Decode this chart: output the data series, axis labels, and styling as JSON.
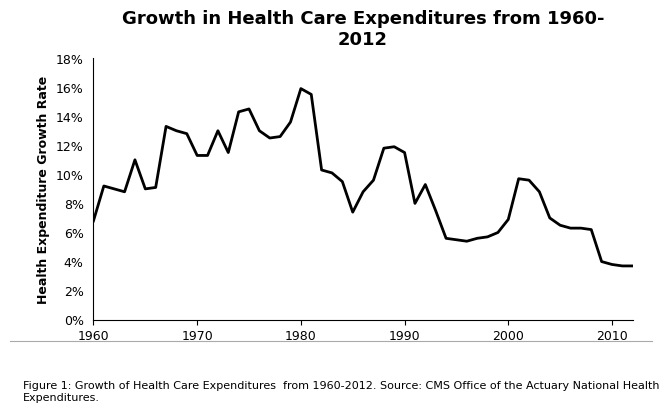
{
  "title": "Growth in Health Care Expenditures from 1960-\n2012",
  "ylabel": "Health Expenditure Growth Rate",
  "xlabel": "",
  "caption": "Figure 1: Growth of Health Care Expenditures  from 1960-2012. Source: CMS Office of the Actuary National Health\nExpenditures.",
  "line_color": "#000000",
  "line_width": 2.0,
  "background_color": "#ffffff",
  "xlim": [
    1960,
    2012
  ],
  "ylim": [
    0,
    0.18
  ],
  "yticks": [
    0,
    0.02,
    0.04,
    0.06,
    0.08,
    0.1,
    0.12,
    0.14,
    0.16,
    0.18
  ],
  "xticks": [
    1960,
    1970,
    1980,
    1990,
    2000,
    2010
  ],
  "years": [
    1960,
    1961,
    1962,
    1963,
    1964,
    1965,
    1966,
    1967,
    1968,
    1969,
    1970,
    1971,
    1972,
    1973,
    1974,
    1975,
    1976,
    1977,
    1978,
    1979,
    1980,
    1981,
    1982,
    1983,
    1984,
    1985,
    1986,
    1987,
    1988,
    1989,
    1990,
    1991,
    1992,
    1993,
    1994,
    1995,
    1996,
    1997,
    1998,
    1999,
    2000,
    2001,
    2002,
    2003,
    2004,
    2005,
    2006,
    2007,
    2008,
    2009,
    2010,
    2011,
    2012
  ],
  "values": [
    0.068,
    0.092,
    0.09,
    0.088,
    0.11,
    0.09,
    0.091,
    0.133,
    0.13,
    0.128,
    0.113,
    0.113,
    0.13,
    0.115,
    0.143,
    0.145,
    0.13,
    0.125,
    0.126,
    0.136,
    0.159,
    0.155,
    0.103,
    0.101,
    0.095,
    0.074,
    0.088,
    0.096,
    0.118,
    0.119,
    0.115,
    0.08,
    0.093,
    0.075,
    0.056,
    0.055,
    0.054,
    0.056,
    0.057,
    0.06,
    0.069,
    0.097,
    0.096,
    0.088,
    0.07,
    0.065,
    0.063,
    0.063,
    0.062,
    0.04,
    0.038,
    0.037,
    0.037
  ],
  "title_fontsize": 13,
  "ylabel_fontsize": 9,
  "tick_fontsize": 9,
  "caption_fontsize": 8
}
